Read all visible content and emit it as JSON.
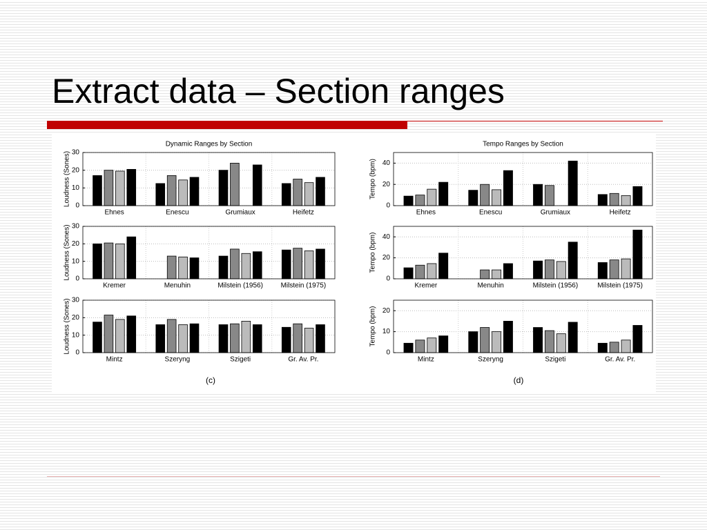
{
  "title": "Extract data – Section ranges",
  "figure_captions": [
    "(c)",
    "(d)"
  ],
  "chart_data": [
    {
      "type": "bar",
      "title": "Dynamic Ranges by Section",
      "y_label": "Loudness (Sones)",
      "categories": [
        "Ehnes",
        "Enescu",
        "Grumiaux",
        "Heifetz"
      ],
      "series": [
        {
          "color": "#000000",
          "values": [
            17,
            12.5,
            20,
            12.5
          ]
        },
        {
          "color": "#888888",
          "values": [
            20,
            17,
            24,
            15
          ]
        },
        {
          "color": "#bbbbbb",
          "values": [
            19.5,
            14.5,
            null,
            13
          ]
        },
        {
          "color": "#000000",
          "values": [
            20.5,
            16,
            23,
            16
          ]
        }
      ],
      "ylim": [
        0,
        30
      ],
      "yticks": [
        0,
        10,
        20,
        30
      ],
      "grid": true
    },
    {
      "type": "bar",
      "title": "Tempo Ranges by Section",
      "y_label": "Tempo (bpm)",
      "categories": [
        "Ehnes",
        "Enescu",
        "Grumiaux",
        "Heifetz"
      ],
      "series": [
        {
          "color": "#000000",
          "values": [
            9,
            14.5,
            20,
            10.5
          ]
        },
        {
          "color": "#888888",
          "values": [
            10,
            20,
            19,
            11.5
          ]
        },
        {
          "color": "#bbbbbb",
          "values": [
            15.5,
            15,
            null,
            9.5
          ]
        },
        {
          "color": "#000000",
          "values": [
            22,
            33,
            42,
            18
          ]
        }
      ],
      "ylim": [
        0,
        50
      ],
      "yticks": [
        0,
        20,
        40
      ],
      "grid": true
    },
    {
      "type": "bar",
      "y_label": "Loudness (Sones)",
      "categories": [
        "Kremer",
        "Menuhin",
        "Milstein (1956)",
        "Milstein (1975)"
      ],
      "series": [
        {
          "color": "#000000",
          "values": [
            20,
            null,
            13,
            16.5
          ]
        },
        {
          "color": "#888888",
          "values": [
            20.5,
            13,
            17,
            17.5
          ]
        },
        {
          "color": "#bbbbbb",
          "values": [
            20,
            12.5,
            14.5,
            16
          ]
        },
        {
          "color": "#000000",
          "values": [
            24,
            12,
            15.5,
            17
          ]
        }
      ],
      "ylim": [
        0,
        30
      ],
      "yticks": [
        0,
        10,
        20,
        30
      ],
      "grid": true
    },
    {
      "type": "bar",
      "y_label": "Tempo (bpm)",
      "categories": [
        "Kremer",
        "Menuhin",
        "Milstein (1956)",
        "Milstein (1975)"
      ],
      "series": [
        {
          "color": "#000000",
          "values": [
            10.5,
            null,
            17,
            15.5
          ]
        },
        {
          "color": "#888888",
          "values": [
            13,
            8.5,
            18,
            18
          ]
        },
        {
          "color": "#bbbbbb",
          "values": [
            14.5,
            8.5,
            16.5,
            19
          ]
        },
        {
          "color": "#000000",
          "values": [
            24.5,
            14.5,
            35,
            46.5
          ]
        }
      ],
      "ylim": [
        0,
        50
      ],
      "yticks": [
        0,
        20,
        40
      ],
      "grid": true
    },
    {
      "type": "bar",
      "y_label": "Loudness (Sones)",
      "categories": [
        "Mintz",
        "Szeryng",
        "Szigeti",
        "Gr. Av. Pr."
      ],
      "series": [
        {
          "color": "#000000",
          "values": [
            17.5,
            16,
            16,
            14.5
          ]
        },
        {
          "color": "#888888",
          "values": [
            21.5,
            19,
            16.5,
            16.5
          ]
        },
        {
          "color": "#bbbbbb",
          "values": [
            19,
            16,
            18,
            14
          ]
        },
        {
          "color": "#000000",
          "values": [
            21,
            16.5,
            16,
            16
          ]
        }
      ],
      "ylim": [
        0,
        30
      ],
      "yticks": [
        0,
        10,
        20,
        30
      ],
      "grid": true
    },
    {
      "type": "bar",
      "y_label": "Tempo (bpm)",
      "categories": [
        "Mintz",
        "Szeryng",
        "Szigeti",
        "Gr. Av. Pr."
      ],
      "series": [
        {
          "color": "#000000",
          "values": [
            4.5,
            10,
            12,
            4.5
          ]
        },
        {
          "color": "#888888",
          "values": [
            6,
            12,
            10.5,
            5
          ]
        },
        {
          "color": "#bbbbbb",
          "values": [
            7,
            10,
            9,
            6
          ]
        },
        {
          "color": "#000000",
          "values": [
            8,
            15,
            14.5,
            13
          ]
        }
      ],
      "ylim": [
        0,
        25
      ],
      "yticks": [
        0,
        10,
        20
      ],
      "grid": true
    }
  ]
}
